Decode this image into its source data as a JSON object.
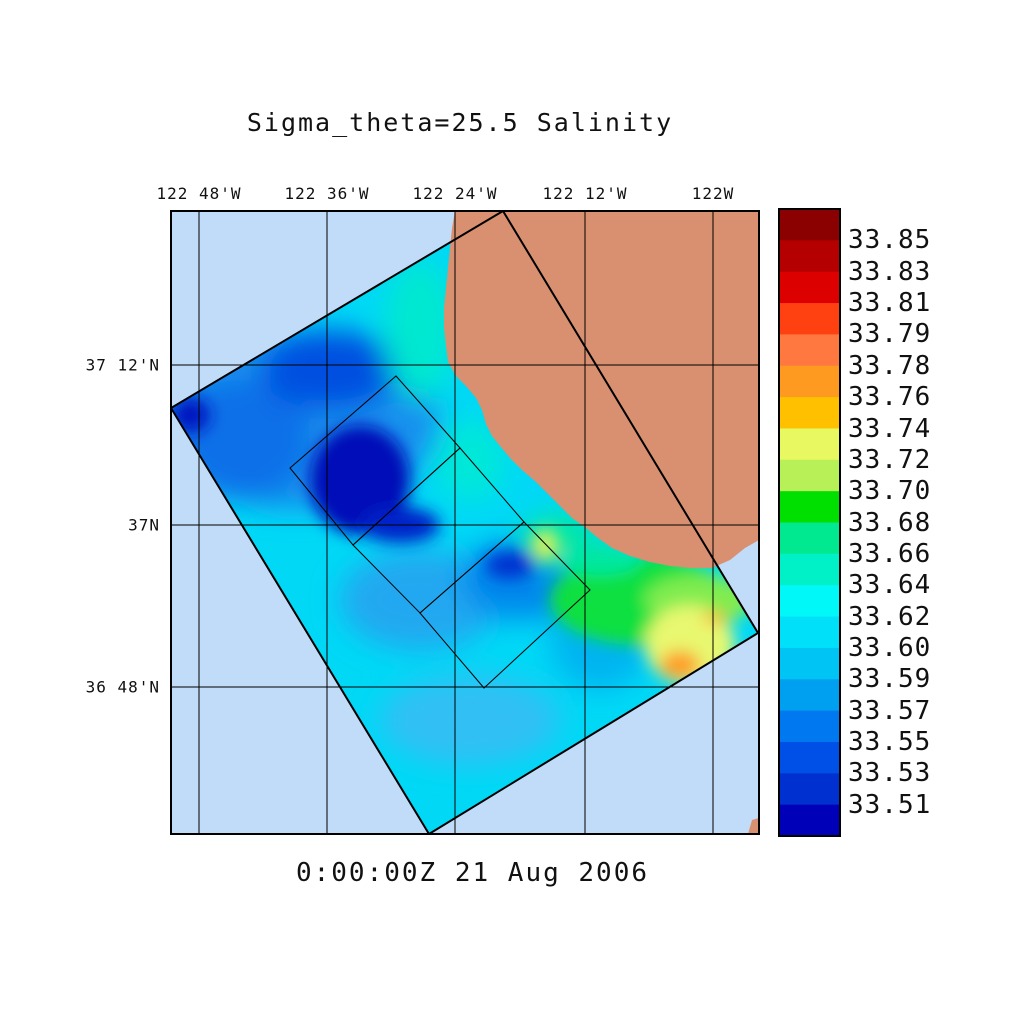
{
  "title": "Sigma_theta=25.5 Salinity",
  "timestamp": "0:00:00Z  21 Aug 2006",
  "lon_ticks": [
    "122 48'W",
    "122 36'W",
    "122 24'W",
    "122 12'W",
    "122W"
  ],
  "lat_ticks": [
    "37 12'N",
    "37N",
    "36 48'N"
  ],
  "colorbar": {
    "labels": [
      "33.85",
      "33.83",
      "33.81",
      "33.79",
      "33.78",
      "33.76",
      "33.74",
      "33.72",
      "33.70",
      "33.68",
      "33.66",
      "33.64",
      "33.62",
      "33.60",
      "33.59",
      "33.57",
      "33.55",
      "33.53",
      "33.51"
    ],
    "colors": [
      "#8b0000",
      "#b40000",
      "#dc0000",
      "#ff4010",
      "#ff7840",
      "#ff9a20",
      "#ffc000",
      "#e8f860",
      "#b8f058",
      "#00e000",
      "#00e890",
      "#00f0c8",
      "#00f8f8",
      "#00e0f8",
      "#00c4f4",
      "#00a0f0",
      "#0078f0",
      "#0050e8",
      "#0030d0",
      "#0000b8"
    ]
  },
  "map_colors": {
    "ocean": "#c0dcf8",
    "land": "#d89070",
    "grid": "#000000"
  }
}
